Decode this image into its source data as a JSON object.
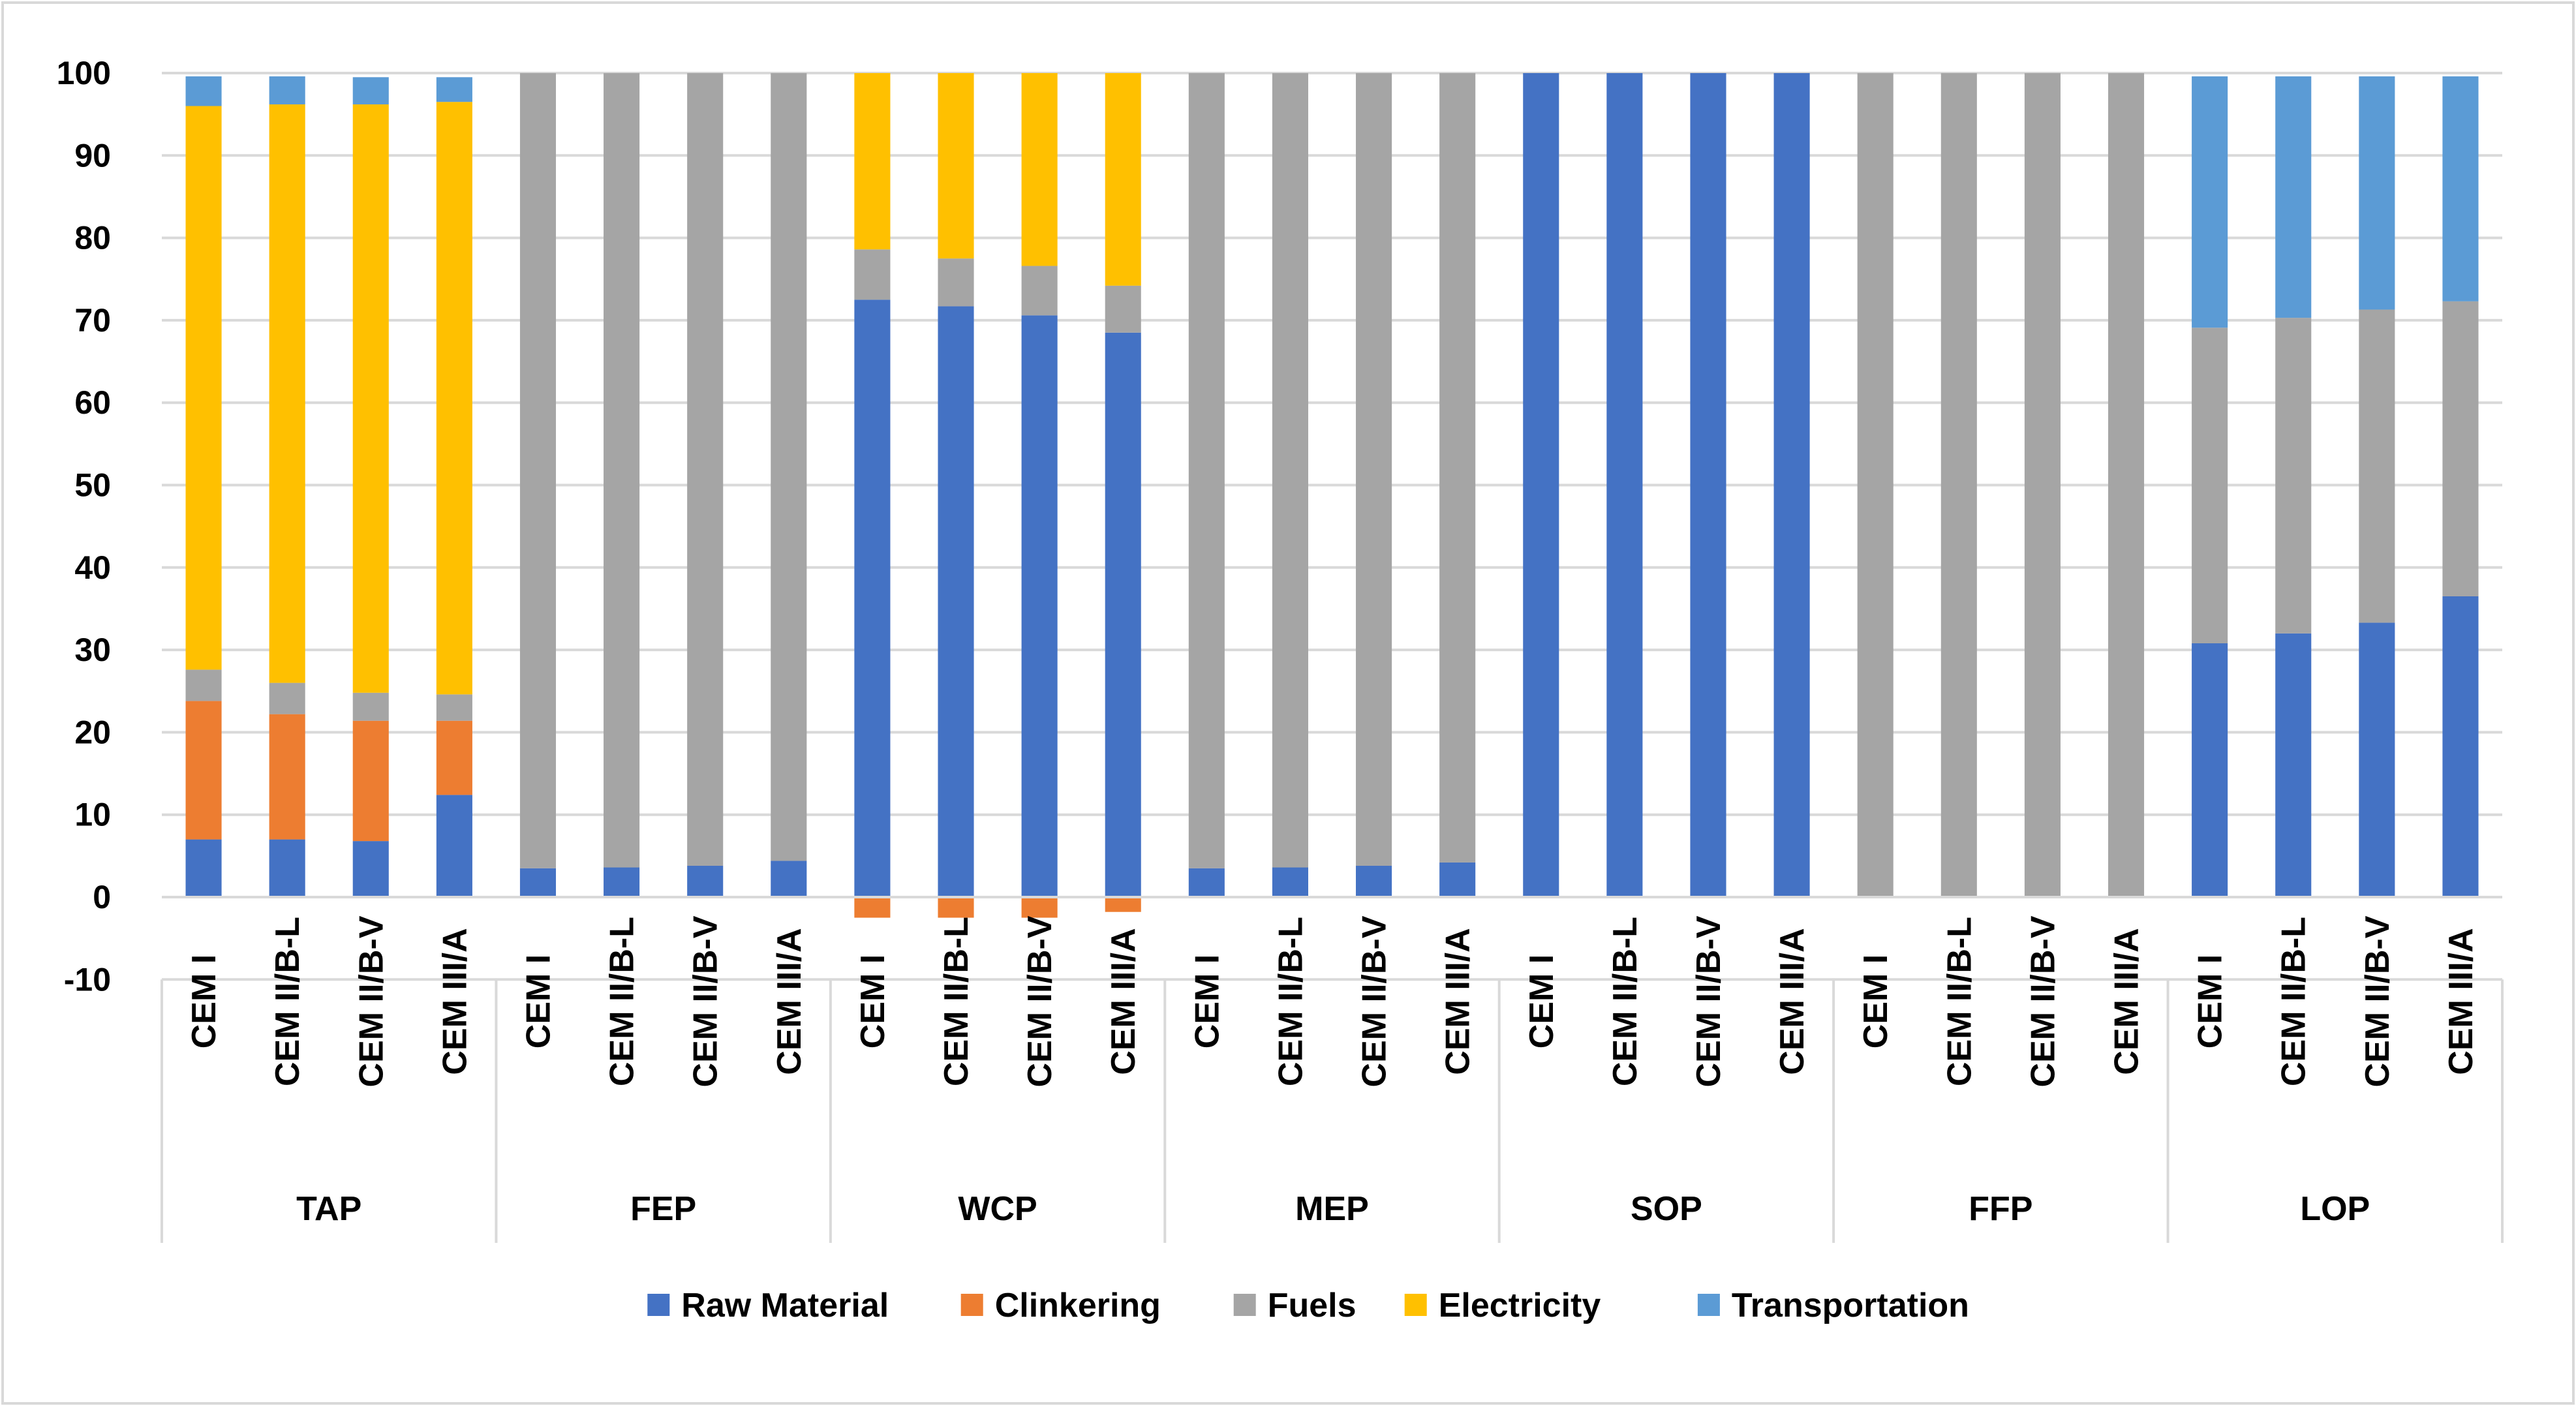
{
  "chart_data": {
    "type": "stacked-bar",
    "title": "",
    "xlabel": "",
    "ylabel": "",
    "ylim": [
      -10,
      100
    ],
    "yticks": [
      -10,
      0,
      10,
      20,
      30,
      40,
      50,
      60,
      70,
      80,
      90,
      100
    ],
    "grid": true,
    "legend_position": "bottom",
    "groups": [
      "TAP",
      "FEP",
      "WCP",
      "MEP",
      "SOP",
      "FFP",
      "LOP"
    ],
    "subcategories": [
      "CEM I",
      "CEM II/B-L",
      "CEM II/B-V",
      "CEM III/A"
    ],
    "series": [
      {
        "name": "Raw Material",
        "color": "#4472C4",
        "values": [
          [
            7,
            7,
            6.8,
            12.4
          ],
          [
            3.5,
            3.6,
            3.8,
            4.4
          ],
          [
            72.5,
            71.7,
            70.6,
            68.5
          ],
          [
            3.5,
            3.6,
            3.8,
            4.2
          ],
          [
            100,
            100,
            100,
            100
          ],
          [
            0,
            0,
            0,
            0
          ],
          [
            30.8,
            32,
            33.3,
            36.5
          ]
        ]
      },
      {
        "name": "Clinkering",
        "color": "#ED7D31",
        "values": [
          [
            16.8,
            15.2,
            14.6,
            9
          ],
          [
            0,
            0,
            0,
            0
          ],
          [
            -2.5,
            -2.5,
            -2.5,
            -1.8
          ],
          [
            0,
            0,
            0,
            0
          ],
          [
            0,
            0,
            0,
            0
          ],
          [
            0,
            0,
            0,
            0
          ],
          [
            0,
            0,
            0,
            0
          ]
        ]
      },
      {
        "name": "Fuels",
        "color": "#A5A5A5",
        "values": [
          [
            3.8,
            3.8,
            3.4,
            3.2
          ],
          [
            96.5,
            96.4,
            96.2,
            95.6
          ],
          [
            6.1,
            5.8,
            6,
            5.7
          ],
          [
            96.5,
            96.4,
            96.2,
            95.8
          ],
          [
            0,
            0,
            0,
            0
          ],
          [
            100,
            100,
            100,
            100
          ],
          [
            38.3,
            38.3,
            38,
            35.8
          ]
        ]
      },
      {
        "name": "Electricity",
        "color": "#FFC000",
        "values": [
          [
            68.4,
            70.2,
            71.4,
            71.9
          ],
          [
            0,
            0,
            0,
            0
          ],
          [
            21.4,
            22.5,
            23.4,
            25.8
          ],
          [
            0,
            0,
            0,
            0
          ],
          [
            0,
            0,
            0,
            0
          ],
          [
            0,
            0,
            0,
            0
          ],
          [
            0,
            0,
            0,
            0
          ]
        ]
      },
      {
        "name": "Transportation",
        "color": "#5B9BD5",
        "values": [
          [
            3.6,
            3.4,
            3.3,
            3
          ],
          [
            0,
            0,
            0,
            0
          ],
          [
            0,
            0,
            0,
            0
          ],
          [
            0,
            0,
            0,
            0
          ],
          [
            0,
            0,
            0,
            0
          ],
          [
            0,
            0,
            0,
            0
          ],
          [
            30.5,
            29.3,
            28.3,
            27.3
          ]
        ]
      }
    ]
  }
}
